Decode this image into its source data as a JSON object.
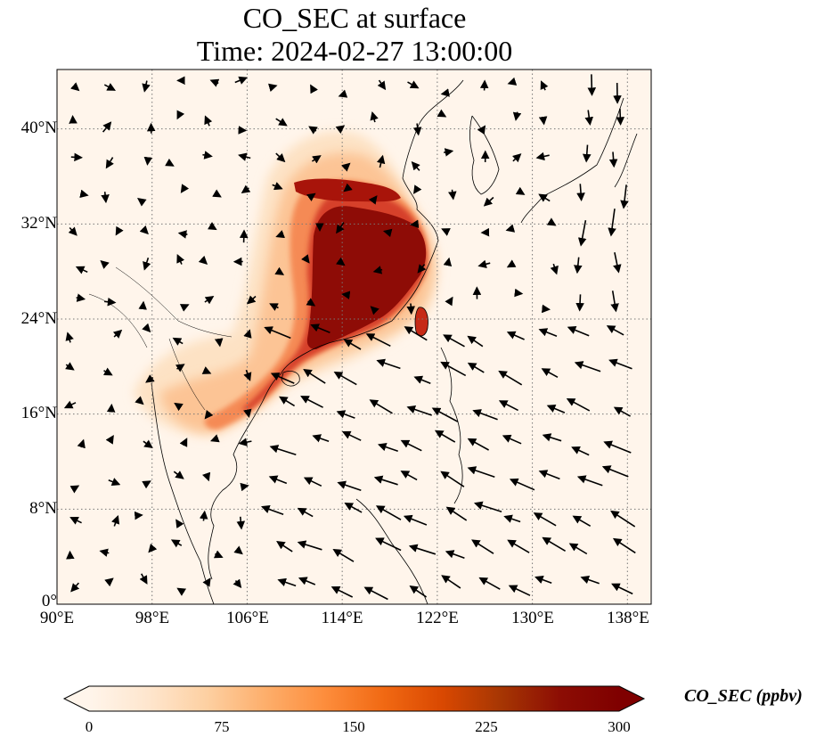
{
  "title": {
    "line1": "CO_SEC at surface",
    "line2": "Time: 2024-02-27 13:00:00"
  },
  "map": {
    "extent": {
      "lon": [
        90,
        140
      ],
      "lat": [
        0,
        45
      ]
    },
    "gridlines": "dotted",
    "lat_ticks": [
      {
        "value": 0,
        "label": "0°"
      },
      {
        "value": 8,
        "label": "8°N"
      },
      {
        "value": 16,
        "label": "16°N"
      },
      {
        "value": 24,
        "label": "24°N"
      },
      {
        "value": 32,
        "label": "32°N"
      },
      {
        "value": 40,
        "label": "40°N"
      }
    ],
    "lon_ticks": [
      {
        "value": 90,
        "label": "90°E"
      },
      {
        "value": 98,
        "label": "98°E"
      },
      {
        "value": 106,
        "label": "106°E"
      },
      {
        "value": 114,
        "label": "114°E"
      },
      {
        "value": 122,
        "label": "122°E"
      },
      {
        "value": 130,
        "label": "130°E"
      },
      {
        "value": 138,
        "label": "138°E"
      }
    ],
    "background_color": "#fff5eb",
    "coastline_color": "#000000",
    "plume_colors": [
      "#fdd9b0",
      "#f9a066",
      "#e4572a",
      "#b81a0e",
      "#7f0000"
    ]
  },
  "colorbar": {
    "label": "CO_SEC (ppbv)",
    "ticks": [
      {
        "value": 0,
        "label": "0"
      },
      {
        "value": 75,
        "label": "75"
      },
      {
        "value": 150,
        "label": "150"
      },
      {
        "value": 225,
        "label": "225"
      },
      {
        "value": 300,
        "label": "300"
      }
    ],
    "range": [
      0,
      300
    ],
    "extend": "both",
    "colormap": [
      "#fff5eb",
      "#fee6ce",
      "#fdd0a2",
      "#fdae6b",
      "#fd8d3c",
      "#f16913",
      "#d94801",
      "#a63603",
      "#8c0d04",
      "#7f0000"
    ]
  }
}
